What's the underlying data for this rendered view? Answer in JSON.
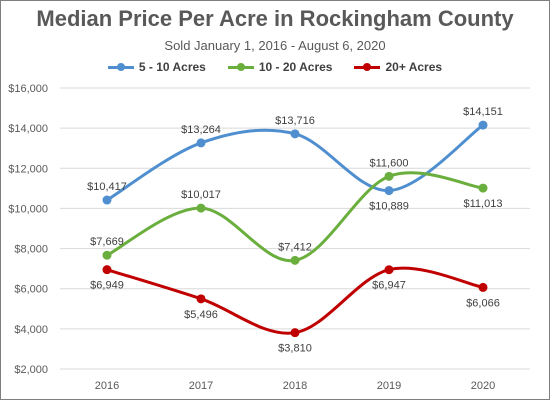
{
  "chart_data": {
    "type": "line",
    "title": "Median Price Per Acre in Rockingham County",
    "subtitle": "Sold January 1, 2016 - August 6, 2020",
    "categories": [
      "2016",
      "2017",
      "2018",
      "2019",
      "2020"
    ],
    "ylim": [
      2000,
      16000
    ],
    "yticks": [
      2000,
      4000,
      6000,
      8000,
      10000,
      12000,
      14000,
      16000
    ],
    "ytick_labels": [
      "$2,000",
      "$4,000",
      "$6,000",
      "$8,000",
      "$10,000",
      "$12,000",
      "$14,000",
      "$16,000"
    ],
    "grid": true,
    "legend_position": "top",
    "series": [
      {
        "name": "5 - 10 Acres",
        "color": "#4f8fd0",
        "values": [
          10417,
          13264,
          13716,
          10889,
          14151
        ],
        "labels": [
          "$10,417",
          "$13,264",
          "$13,716",
          "$10,889",
          "$14,151"
        ],
        "label_positions": [
          "above",
          "above",
          "above",
          "below",
          "above"
        ]
      },
      {
        "name": "10 - 20 Acres",
        "color": "#6aaf3d",
        "values": [
          7669,
          10017,
          7412,
          11600,
          11013
        ],
        "labels": [
          "$7,669",
          "$10,017",
          "$7,412",
          "$11,600",
          "$11,013"
        ],
        "label_positions": [
          "above",
          "above",
          "above",
          "above",
          "below"
        ]
      },
      {
        "name": "20+ Acres",
        "color": "#c00000",
        "values": [
          6949,
          5496,
          3810,
          6947,
          6066
        ],
        "labels": [
          "$6,949",
          "$5,496",
          "$3,810",
          "$6,947",
          "$6,066"
        ],
        "label_positions": [
          "below",
          "below",
          "below",
          "below",
          "below"
        ]
      }
    ]
  }
}
